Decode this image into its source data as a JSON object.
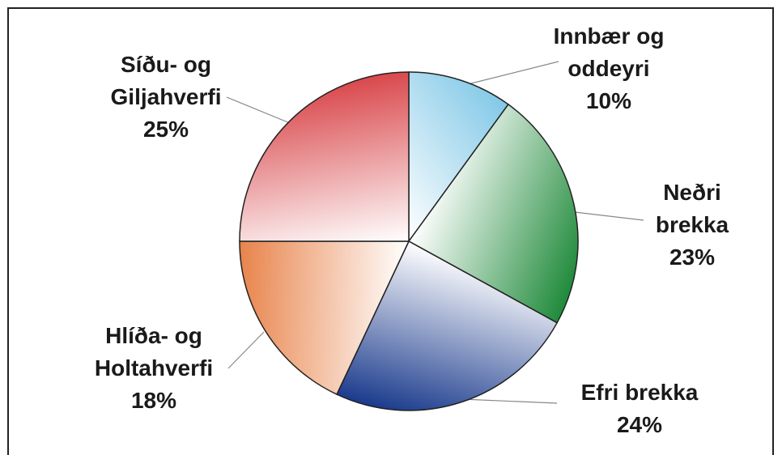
{
  "chart_data": {
    "type": "pie",
    "categories": [
      "Innbær og oddeyri",
      "Neðri brekka",
      "Efri brekka",
      "Hlíða- og Holtahverfi",
      "Síðu- og Giljahverfi"
    ],
    "values": [
      10,
      23,
      24,
      18,
      25
    ],
    "value_labels": [
      "10%",
      "23%",
      "24%",
      "18%",
      "25%"
    ],
    "colors": [
      "#7cc6e6",
      "#1f8a3a",
      "#1a3a8c",
      "#e8834a",
      "#d9484c"
    ]
  }
}
